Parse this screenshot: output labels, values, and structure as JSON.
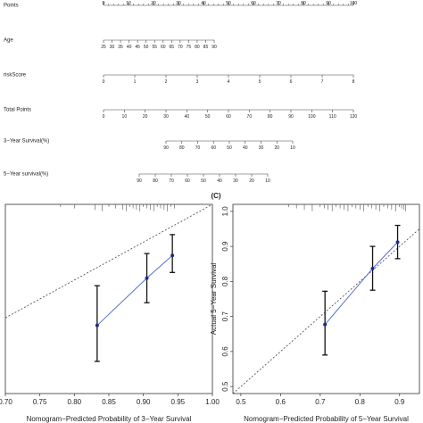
{
  "chart_data": [
    {
      "type": "table",
      "kind": "nomogram",
      "rows": [
        {
          "label": "Points",
          "ticks": [
            "0",
            "10",
            "20",
            "30",
            "40",
            "50",
            "60",
            "70",
            "80",
            "90",
            "100"
          ],
          "range": [
            0,
            100
          ]
        },
        {
          "label": "Age",
          "ticks": [
            "25",
            "30",
            "35",
            "40",
            "45",
            "50",
            "55",
            "60",
            "65",
            "70",
            "75",
            "80",
            "85",
            "90"
          ],
          "range": [
            25,
            90
          ]
        },
        {
          "label": "riskScore",
          "ticks": [
            "0",
            "1",
            "2",
            "3",
            "4",
            "5",
            "6",
            "7",
            "8"
          ],
          "range": [
            0,
            8
          ]
        },
        {
          "label": "Total Points",
          "ticks": [
            "0",
            "10",
            "20",
            "30",
            "40",
            "50",
            "60",
            "70",
            "80",
            "90",
            "100",
            "110",
            "120"
          ],
          "range": [
            0,
            120
          ]
        },
        {
          "label": "3−Year Survival(%)",
          "ticks": [
            "90",
            "80",
            "70",
            "60",
            "50",
            "40",
            "30",
            "20",
            "10"
          ],
          "range": [
            90,
            10
          ]
        },
        {
          "label": "5−Year survival(%)",
          "ticks": [
            "90",
            "80",
            "70",
            "60",
            "50",
            "40",
            "30",
            "20",
            "10"
          ],
          "range": [
            90,
            10
          ]
        }
      ]
    },
    {
      "type": "scatter",
      "panel_label": "",
      "xlabel": "Nomogram−Predicted Probability of 3−Year Survival",
      "ylabel": "",
      "xlim": [
        0.7,
        1.0
      ],
      "ylim": [
        0.5,
        1.0
      ],
      "x_ticks": [
        "0.70",
        "0.75",
        "0.80",
        "0.85",
        "0.90",
        "0.95",
        "1.00"
      ],
      "y_ticks": [],
      "reference_line": "diagonal",
      "points": [
        {
          "x": 0.833,
          "y": 0.68,
          "lower": 0.585,
          "upper": 0.785
        },
        {
          "x": 0.905,
          "y": 0.805,
          "lower": 0.74,
          "upper": 0.87
        },
        {
          "x": 0.942,
          "y": 0.865,
          "lower": 0.82,
          "upper": 0.92
        }
      ],
      "rug": [
        0.78,
        0.8,
        0.83,
        0.84,
        0.85,
        0.86,
        0.87,
        0.875,
        0.88,
        0.885,
        0.89,
        0.895,
        0.9,
        0.905,
        0.91,
        0.915,
        0.92,
        0.925,
        0.93,
        0.935,
        0.94,
        0.945
      ]
    },
    {
      "type": "scatter",
      "panel_label": "(C)",
      "xlabel": "Nomogram−Predicted Probability of 5−Year Survival",
      "ylabel": "Actual 5−Year Survival",
      "xlim": [
        0.48,
        0.95
      ],
      "ylim": [
        0.48,
        1.02
      ],
      "x_ticks": [
        "0.5",
        "0.6",
        "0.7",
        "0.8",
        "0.9"
      ],
      "y_ticks": [
        "0.5",
        "0.6",
        "0.7",
        "0.8",
        "0.9",
        "1.0"
      ],
      "reference_line": "diagonal",
      "points": [
        {
          "x": 0.712,
          "y": 0.677,
          "lower": 0.59,
          "upper": 0.772
        },
        {
          "x": 0.832,
          "y": 0.837,
          "lower": 0.775,
          "upper": 0.9
        },
        {
          "x": 0.895,
          "y": 0.912,
          "lower": 0.865,
          "upper": 0.96
        }
      ],
      "rug": [
        0.62,
        0.64,
        0.66,
        0.68,
        0.7,
        0.71,
        0.72,
        0.73,
        0.74,
        0.75,
        0.76,
        0.77,
        0.78,
        0.79,
        0.8,
        0.81,
        0.82,
        0.83,
        0.84,
        0.85,
        0.86,
        0.87,
        0.88,
        0.89,
        0.9,
        0.905,
        0.91,
        0.915
      ]
    }
  ]
}
